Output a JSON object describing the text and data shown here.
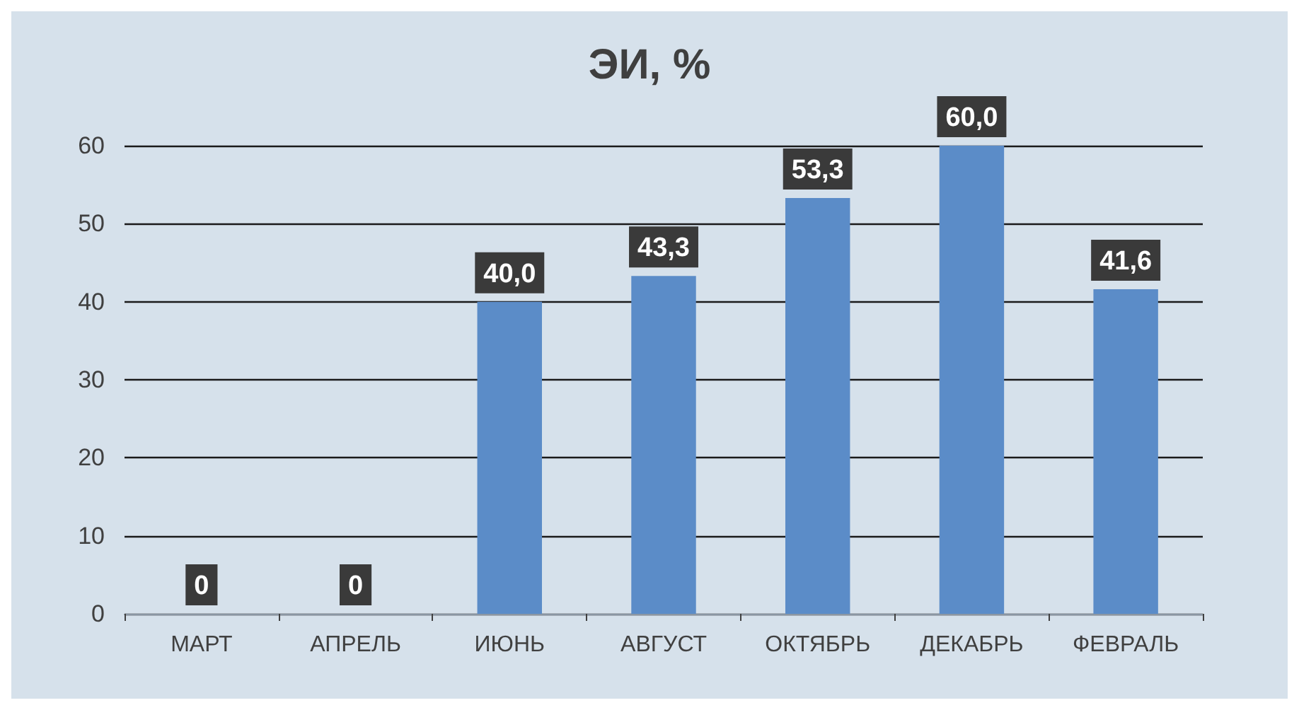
{
  "chart_data": {
    "type": "bar",
    "title": "ЭИ, %",
    "categories": [
      "МАРТ",
      "АПРЕЛЬ",
      "ИЮНЬ",
      "АВГУСТ",
      "ОКТЯБРЬ",
      "ДЕКАБРЬ",
      "ФЕВРАЛЬ"
    ],
    "values": [
      0,
      0,
      40.0,
      43.3,
      53.3,
      60.0,
      41.6
    ],
    "value_labels": [
      "0",
      "0",
      "40,0",
      "43,3",
      "53,3",
      "60,0",
      "41,6"
    ],
    "color": "#5b8cc8",
    "ylim": [
      0,
      60
    ],
    "yticks": [
      0,
      10,
      20,
      30,
      40,
      50,
      60
    ],
    "grid": "y"
  }
}
